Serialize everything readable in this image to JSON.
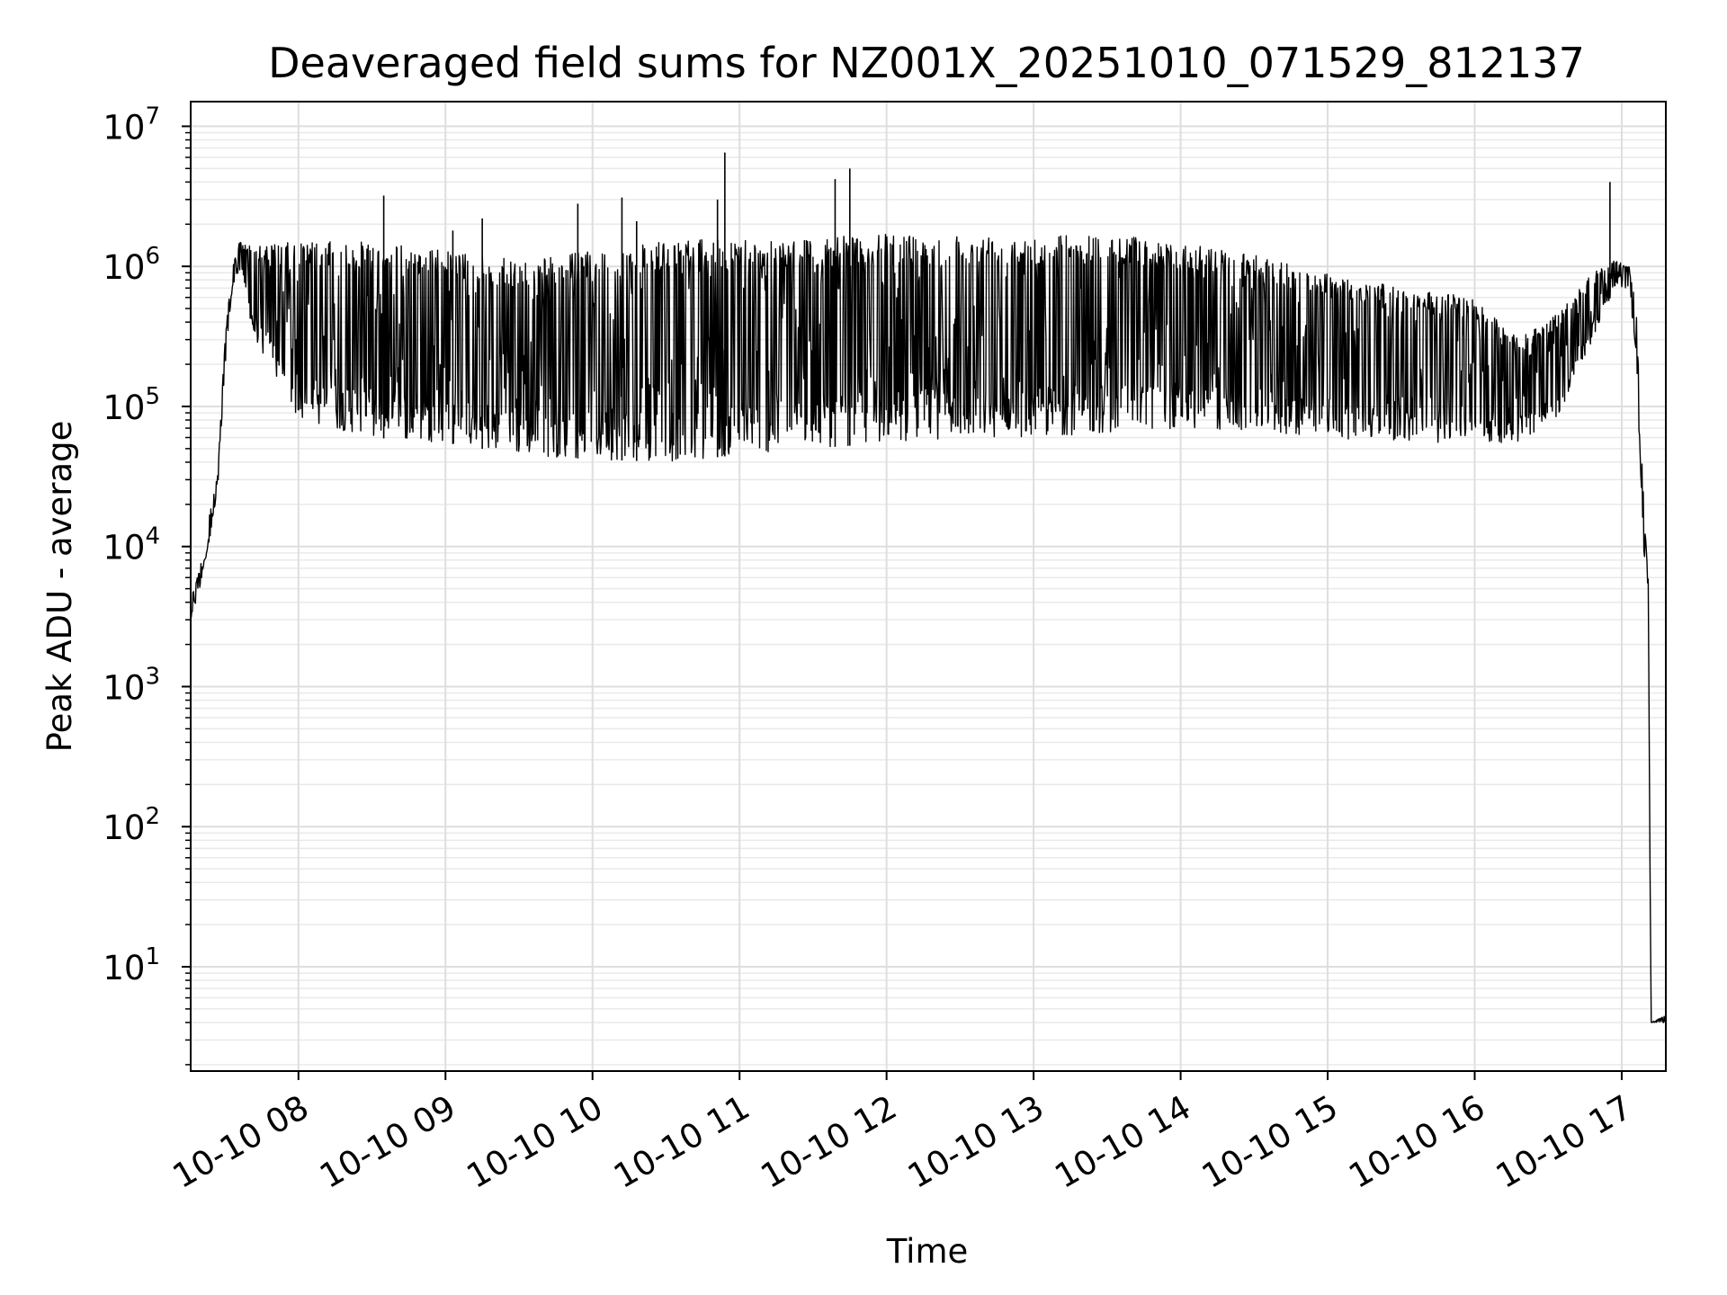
{
  "chart_data": {
    "type": "line",
    "title": "Deaveraged field sums for NZ001X_20251010_071529_812137",
    "xlabel": "Time",
    "ylabel": "Peak ADU - average",
    "yscale": "log",
    "ylim": [
      1.8,
      15000000
    ],
    "xlim_hours": [
      7.267,
      17.3
    ],
    "grid": true,
    "line_color": "#000000",
    "x_ticks": [
      {
        "value": 8,
        "label": "10-10 08"
      },
      {
        "value": 9,
        "label": "10-10 09"
      },
      {
        "value": 10,
        "label": "10-10 10"
      },
      {
        "value": 11,
        "label": "10-10 11"
      },
      {
        "value": 12,
        "label": "10-10 12"
      },
      {
        "value": 13,
        "label": "10-10 13"
      },
      {
        "value": 14,
        "label": "10-10 14"
      },
      {
        "value": 15,
        "label": "10-10 15"
      },
      {
        "value": 16,
        "label": "10-10 16"
      },
      {
        "value": 17,
        "label": "10-10 17"
      }
    ],
    "y_ticks": [
      {
        "value": 10,
        "base": "10",
        "exp": "1"
      },
      {
        "value": 100,
        "base": "10",
        "exp": "2"
      },
      {
        "value": 1000,
        "base": "10",
        "exp": "3"
      },
      {
        "value": 10000,
        "base": "10",
        "exp": "4"
      },
      {
        "value": 100000,
        "base": "10",
        "exp": "5"
      },
      {
        "value": 1000000,
        "base": "10",
        "exp": "6"
      },
      {
        "value": 10000000,
        "base": "10",
        "exp": "7"
      }
    ],
    "series": [
      {
        "name": "deaveraged field sum",
        "envelope": [
          {
            "t": 7.27,
            "low": 3000,
            "high": 4500
          },
          {
            "t": 7.33,
            "low": 5000,
            "high": 7000
          },
          {
            "t": 7.4,
            "low": 12000,
            "high": 18000
          },
          {
            "t": 7.45,
            "low": 25000,
            "high": 33000
          },
          {
            "t": 7.5,
            "low": 180000,
            "high": 300000
          },
          {
            "t": 7.55,
            "low": 700000,
            "high": 1000000
          },
          {
            "t": 7.6,
            "low": 900000,
            "high": 1500000
          },
          {
            "t": 7.7,
            "low": 300000,
            "high": 1400000
          },
          {
            "t": 8.0,
            "low": 80000,
            "high": 1500000
          },
          {
            "t": 8.5,
            "low": 60000,
            "high": 1500000
          },
          {
            "t": 9.0,
            "low": 55000,
            "high": 1300000
          },
          {
            "t": 9.5,
            "low": 45000,
            "high": 1100000
          },
          {
            "t": 10.0,
            "low": 42000,
            "high": 1300000
          },
          {
            "t": 10.5,
            "low": 40000,
            "high": 1500000
          },
          {
            "t": 11.0,
            "low": 45000,
            "high": 1600000
          },
          {
            "t": 11.5,
            "low": 50000,
            "high": 1600000
          },
          {
            "t": 12.0,
            "low": 55000,
            "high": 1700000
          },
          {
            "t": 12.5,
            "low": 60000,
            "high": 1700000
          },
          {
            "t": 13.0,
            "low": 60000,
            "high": 1700000
          },
          {
            "t": 13.5,
            "low": 65000,
            "high": 1700000
          },
          {
            "t": 14.0,
            "low": 70000,
            "high": 1500000
          },
          {
            "t": 14.5,
            "low": 65000,
            "high": 1200000
          },
          {
            "t": 15.0,
            "low": 60000,
            "high": 900000
          },
          {
            "t": 15.5,
            "low": 55000,
            "high": 700000
          },
          {
            "t": 16.0,
            "low": 55000,
            "high": 600000
          },
          {
            "t": 16.3,
            "low": 55000,
            "high": 300000
          },
          {
            "t": 16.6,
            "low": 90000,
            "high": 500000
          },
          {
            "t": 16.8,
            "low": 300000,
            "high": 900000
          },
          {
            "t": 16.95,
            "low": 700000,
            "high": 1100000
          },
          {
            "t": 17.05,
            "low": 700000,
            "high": 1000000
          },
          {
            "t": 17.1,
            "low": 200000,
            "high": 500000
          },
          {
            "t": 17.15,
            "low": 8000,
            "high": 20000
          },
          {
            "t": 17.18,
            "low": 3000,
            "high": 6000
          },
          {
            "t": 17.2,
            "low": 4,
            "high": 4
          },
          {
            "t": 17.3,
            "low": 4,
            "high": 4.5
          }
        ],
        "spikes": [
          {
            "t": 8.58,
            "value": 3200000
          },
          {
            "t": 9.05,
            "value": 1800000
          },
          {
            "t": 9.25,
            "value": 2200000
          },
          {
            "t": 9.9,
            "value": 2800000
          },
          {
            "t": 10.2,
            "value": 3100000
          },
          {
            "t": 10.3,
            "value": 2100000
          },
          {
            "t": 10.85,
            "value": 3000000
          },
          {
            "t": 10.9,
            "value": 6500000
          },
          {
            "t": 11.65,
            "value": 4200000
          },
          {
            "t": 11.75,
            "value": 5000000
          },
          {
            "t": 16.92,
            "value": 4000000
          }
        ]
      }
    ]
  }
}
